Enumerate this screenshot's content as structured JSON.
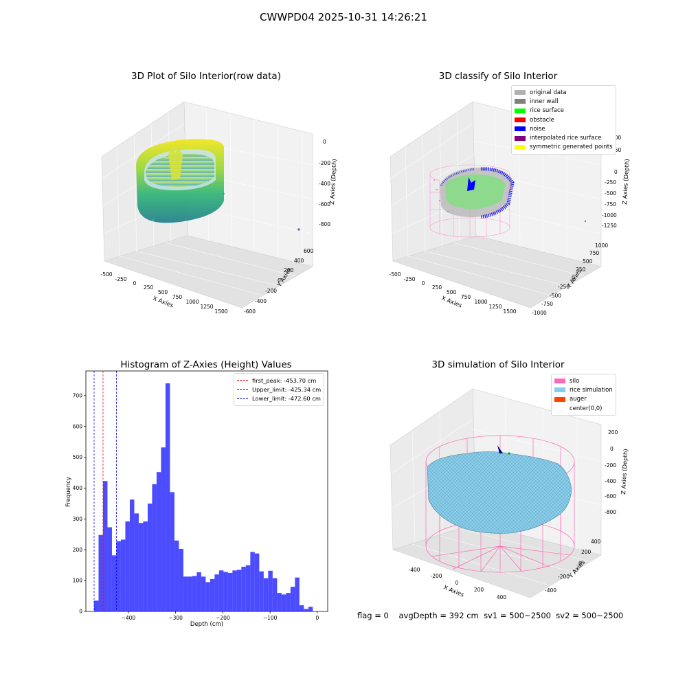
{
  "figure": {
    "suptitle": "CWWPD04 2025-10-31 14:26:21"
  },
  "plot_raw": {
    "title": "3D Plot of Silo Interior(row data)",
    "xlabel": "X Axies",
    "ylabel": "Y Axies",
    "zlabel": "Z Axies (Depth)",
    "xticks": [
      "-500",
      "-250",
      "0",
      "250",
      "500",
      "750",
      "1000",
      "1250",
      "1500"
    ],
    "yticks": [
      "-600",
      "-400",
      "-200",
      "0",
      "200",
      "400",
      "600"
    ],
    "zticks": [
      "0",
      "-200",
      "-400",
      "-600",
      "-800"
    ]
  },
  "plot_classify": {
    "title": "3D classify of Silo Interior",
    "xlabel": "X Axies",
    "ylabel": "Y Axies",
    "zlabel": "Z Axies (Depth)",
    "xticks": [
      "-500",
      "-250",
      "0",
      "250",
      "500",
      "750",
      "1000",
      "1250",
      "1500"
    ],
    "yticks": [
      "-1000",
      "-750",
      "-500",
      "-250",
      "0",
      "250",
      "500",
      "750",
      "1000"
    ],
    "zticks": [
      "500",
      "250",
      "0",
      "-250",
      "-500",
      "-750",
      "-1000",
      "-1250"
    ],
    "legend": [
      {
        "label": "original data",
        "color": "#b0b0b0"
      },
      {
        "label": "inner wall",
        "color": "#808080"
      },
      {
        "label": "rice surface",
        "color": "#00ff00"
      },
      {
        "label": "obstacle",
        "color": "#ff0000"
      },
      {
        "label": "noise",
        "color": "#0000ff"
      },
      {
        "label": "interpolated rice surface",
        "color": "#800080"
      },
      {
        "label": "symmetric generated points",
        "color": "#ffff00"
      }
    ]
  },
  "plot_sim": {
    "title": "3D simulation of Silo Interior",
    "xlabel": "X Axies",
    "ylabel": "Y Axies",
    "zlabel": "Z Axies (Depth)",
    "xticks": [
      "-400",
      "-200",
      "0",
      "200",
      "400"
    ],
    "yticks": [
      "-400",
      "-200",
      "0",
      "200",
      "400"
    ],
    "zticks": [
      "200",
      "0",
      "-200",
      "-400",
      "-600",
      "-800"
    ],
    "legend": [
      {
        "label": "silo",
        "color": "#ff69b4"
      },
      {
        "label": "rice simulation",
        "color": "#87ceeb"
      },
      {
        "label": "auger",
        "color": "#ff4500"
      },
      {
        "label": "center(0,0)",
        "color": "#ffffff"
      }
    ]
  },
  "chart_data": [
    {
      "type": "bar",
      "title": "Histogram of Z-Axies (Height) Values",
      "xlabel": "Depth (cm)",
      "ylabel": "Frequency",
      "xlim": [
        -490,
        22
      ],
      "ylim": [
        0,
        780
      ],
      "xticks": [
        -400,
        -300,
        -200,
        -100,
        0
      ],
      "yticks": [
        0,
        100,
        200,
        300,
        400,
        500,
        600,
        700
      ],
      "bar_color": "#0000ff",
      "bin_start": -472.6,
      "bin_width": 9.45,
      "values": [
        35,
        248,
        423,
        273,
        182,
        228,
        233,
        292,
        363,
        318,
        287,
        292,
        350,
        413,
        452,
        532,
        740,
        387,
        230,
        203,
        113,
        113,
        115,
        127,
        113,
        95,
        105,
        120,
        133,
        128,
        125,
        133,
        135,
        145,
        150,
        193,
        188,
        130,
        108,
        132,
        108,
        60,
        55,
        60,
        80,
        110,
        20,
        8,
        15
      ],
      "vlines": [
        {
          "label": "first_peak: -453.70 cm",
          "x": -453.7,
          "color": "#ff0000"
        },
        {
          "label": "Upper_limit: -425.34 cm",
          "x": -425.34,
          "color": "#0000ff"
        },
        {
          "label": "Lower_limit: -472.60 cm",
          "x": -472.6,
          "color": "#0000ff"
        }
      ]
    }
  ],
  "footer": {
    "flag": "flag = 0",
    "avg": "avgDepth = 392 cm",
    "sv1": "sv1 = 500~2500",
    "sv2": "sv2 = 500~2500"
  }
}
